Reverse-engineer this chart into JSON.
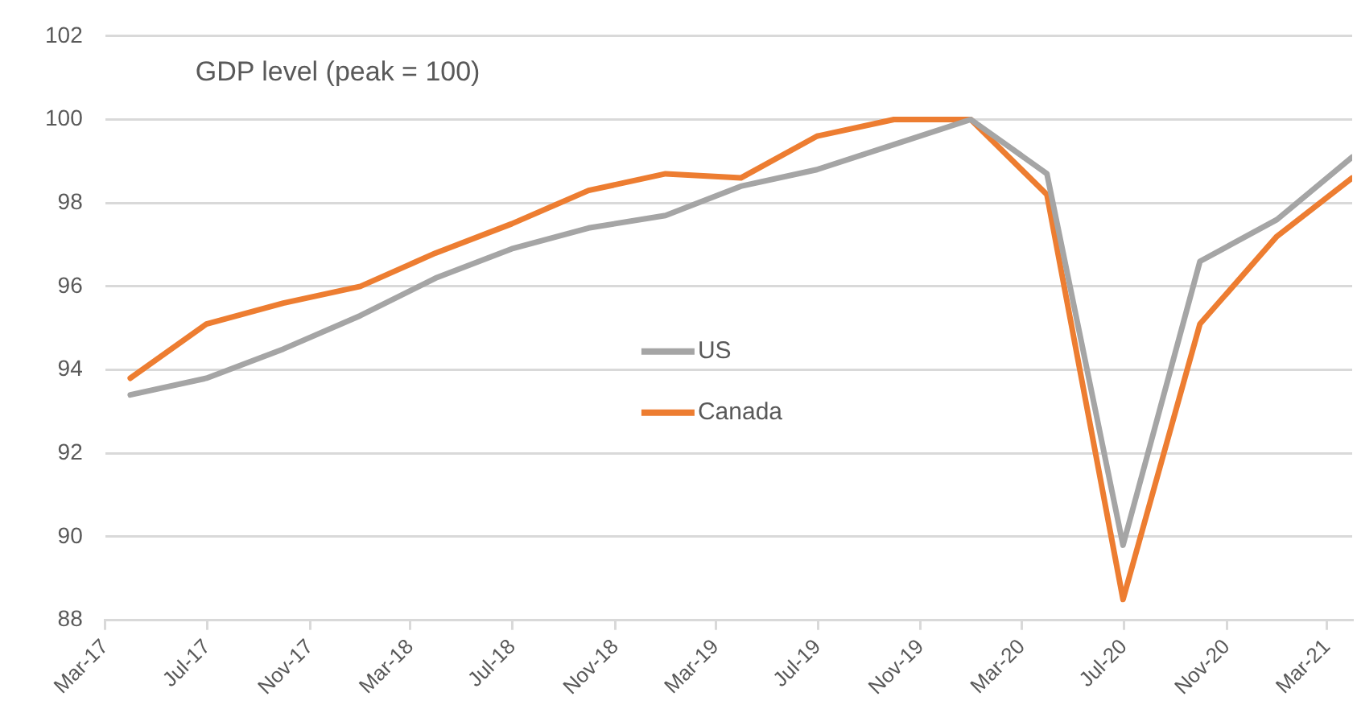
{
  "chart_data": {
    "type": "line",
    "title": "GDP level (peak = 100)",
    "x": [
      "2017-03-31",
      "2017-06-30",
      "2017-09-30",
      "2017-12-31",
      "2018-03-31",
      "2018-06-30",
      "2018-09-30",
      "2018-12-31",
      "2019-03-31",
      "2019-06-30",
      "2019-09-30",
      "2019-12-31",
      "2020-03-31",
      "2020-06-30",
      "2020-09-30",
      "2020-12-31",
      "2021-03-31"
    ],
    "series": [
      {
        "name": "US",
        "color": "#a5a5a5",
        "values": [
          93.4,
          93.8,
          94.5,
          95.3,
          96.2,
          96.9,
          97.4,
          97.7,
          98.4,
          98.8,
          99.4,
          100,
          98.7,
          89.8,
          96.6,
          97.6,
          99.1
        ]
      },
      {
        "name": "Canada",
        "color": "#ed7d31",
        "values": [
          93.8,
          95.1,
          95.6,
          96.0,
          96.8,
          97.5,
          98.3,
          98.7,
          98.6,
          99.6,
          100,
          100,
          98.2,
          88.5,
          95.1,
          97.2,
          98.6
        ]
      }
    ],
    "xlim": [
      "2017-03-01",
      "2021-03-31"
    ],
    "xticks": [
      {
        "value": "2017-03-01",
        "label": "Mar-17"
      },
      {
        "value": "2017-07-01",
        "label": "Jul-17"
      },
      {
        "value": "2017-11-01",
        "label": "Nov-17"
      },
      {
        "value": "2018-03-01",
        "label": "Mar-18"
      },
      {
        "value": "2018-07-01",
        "label": "Jul-18"
      },
      {
        "value": "2018-11-01",
        "label": "Nov-18"
      },
      {
        "value": "2019-03-01",
        "label": "Mar-19"
      },
      {
        "value": "2019-07-01",
        "label": "Jul-19"
      },
      {
        "value": "2019-11-01",
        "label": "Nov-19"
      },
      {
        "value": "2020-03-01",
        "label": "Mar-20"
      },
      {
        "value": "2020-07-01",
        "label": "Jul-20"
      },
      {
        "value": "2020-11-01",
        "label": "Nov-20"
      },
      {
        "value": "2021-03-01",
        "label": "Mar-21"
      }
    ],
    "ylim": [
      88,
      102
    ],
    "yticks": [
      88,
      90,
      92,
      94,
      96,
      98,
      100,
      102
    ],
    "grid": "y",
    "legend": "center",
    "line_style": "solid",
    "marker": "none"
  }
}
